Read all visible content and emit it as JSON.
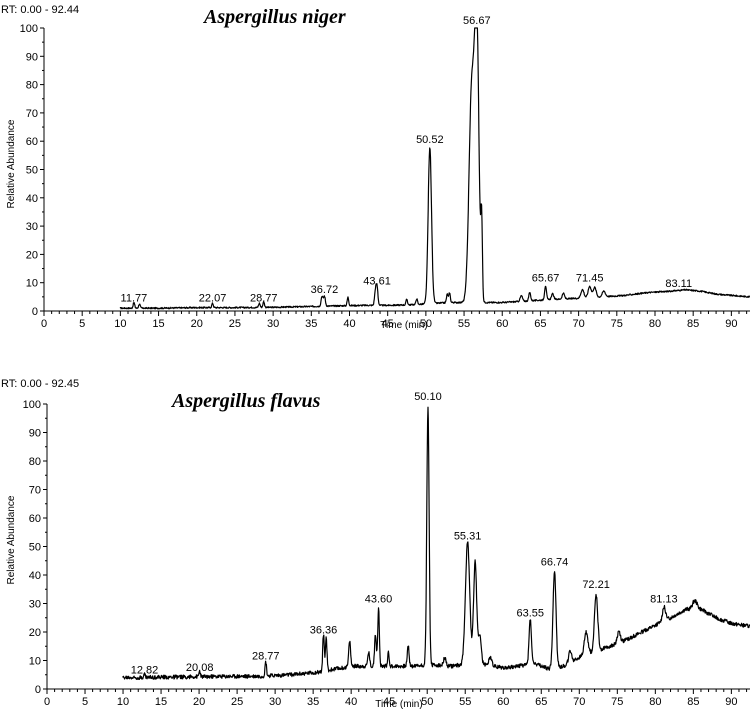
{
  "chart_data": [
    {
      "type": "line",
      "rt_label": "RT: 0.00 - 92.44",
      "title": "Aspergillus niger",
      "xlabel": "Time (min)",
      "ylabel": "Relative Abundance",
      "xlim": [
        0,
        92.44
      ],
      "ylim": [
        0,
        100
      ],
      "x_ticks": [
        0,
        5,
        10,
        15,
        20,
        25,
        30,
        35,
        40,
        45,
        50,
        55,
        60,
        65,
        70,
        75,
        80,
        85,
        90
      ],
      "y_ticks": [
        0,
        10,
        20,
        30,
        40,
        50,
        60,
        70,
        80,
        90,
        100
      ],
      "peak_labels": [
        {
          "x": 11.77,
          "y": 2,
          "text": "11.77"
        },
        {
          "x": 22.07,
          "y": 2,
          "text": "22.07"
        },
        {
          "x": 28.77,
          "y": 2,
          "text": "28.77"
        },
        {
          "x": 36.72,
          "y": 5,
          "text": "36.72"
        },
        {
          "x": 43.61,
          "y": 8,
          "text": "43.61"
        },
        {
          "x": 50.52,
          "y": 58,
          "text": "50.52"
        },
        {
          "x": 56.67,
          "y": 100,
          "text": "56.67"
        },
        {
          "x": 65.67,
          "y": 9,
          "text": "65.67"
        },
        {
          "x": 71.45,
          "y": 9,
          "text": "71.45"
        },
        {
          "x": 83.11,
          "y": 7,
          "text": "83.11"
        }
      ],
      "series": [
        {
          "baseline": [
            [
              10,
              1
            ],
            [
              15,
              1
            ],
            [
              20,
              1.2
            ],
            [
              25,
              1.2
            ],
            [
              30,
              1.3
            ],
            [
              35,
              1.6
            ],
            [
              38,
              1.8
            ],
            [
              42,
              2
            ],
            [
              45,
              2
            ],
            [
              48,
              2.2
            ],
            [
              50,
              2.5
            ],
            [
              53,
              3
            ],
            [
              57,
              3
            ],
            [
              60,
              3
            ],
            [
              63,
              3.5
            ],
            [
              66,
              4
            ],
            [
              70,
              4.5
            ],
            [
              73,
              5
            ],
            [
              76,
              5.5
            ],
            [
              79,
              6.5
            ],
            [
              82,
              7
            ],
            [
              84,
              7.5
            ],
            [
              86,
              7
            ],
            [
              88,
              6
            ],
            [
              90,
              5.5
            ],
            [
              92.44,
              5
            ]
          ],
          "peaks": [
            [
              11.77,
              2,
              0.1
            ],
            [
              12.5,
              1.5,
              0.1
            ],
            [
              22.07,
              1.5,
              0.1
            ],
            [
              28.2,
              1.5,
              0.1
            ],
            [
              28.77,
              2,
              0.1
            ],
            [
              36.4,
              3.5,
              0.12
            ],
            [
              36.72,
              3.5,
              0.12
            ],
            [
              39.8,
              3,
              0.1
            ],
            [
              43.4,
              5,
              0.12
            ],
            [
              43.61,
              6,
              0.12
            ],
            [
              47.5,
              2,
              0.1
            ],
            [
              48.8,
              2,
              0.1
            ],
            [
              50.52,
              55,
              0.22
            ],
            [
              52.8,
              3,
              0.1
            ],
            [
              53.1,
              3.5,
              0.1
            ],
            [
              56.0,
              75,
              0.35
            ],
            [
              56.67,
              95,
              0.28
            ],
            [
              57.3,
              27,
              0.1
            ],
            [
              62.5,
              2,
              0.15
            ],
            [
              63.6,
              3,
              0.12
            ],
            [
              65.67,
              5,
              0.12
            ],
            [
              66.6,
              2,
              0.15
            ],
            [
              68,
              2,
              0.15
            ],
            [
              70.5,
              3,
              0.2
            ],
            [
              71.45,
              4,
              0.2
            ],
            [
              72.1,
              3.5,
              0.2
            ],
            [
              73.3,
              2,
              0.2
            ]
          ],
          "noise": 0.25
        }
      ]
    },
    {
      "type": "line",
      "rt_label": "RT: 0.00 - 92.45",
      "title": "Aspergillus flavus",
      "xlabel": "Time (min)",
      "ylabel": "Relative Abundance",
      "xlim": [
        0,
        92.45
      ],
      "ylim": [
        0,
        100
      ],
      "x_ticks": [
        0,
        5,
        10,
        15,
        20,
        25,
        30,
        35,
        40,
        45,
        50,
        55,
        60,
        65,
        70,
        75,
        80,
        85,
        90
      ],
      "y_ticks": [
        0,
        10,
        20,
        30,
        40,
        50,
        60,
        70,
        80,
        90,
        100
      ],
      "peak_labels": [
        {
          "x": 12.82,
          "y": 4,
          "text": "12.82"
        },
        {
          "x": 20.08,
          "y": 5,
          "text": "20.08"
        },
        {
          "x": 28.77,
          "y": 9,
          "text": "28.77"
        },
        {
          "x": 36.36,
          "y": 18,
          "text": "36.36"
        },
        {
          "x": 43.6,
          "y": 29,
          "text": "43.60"
        },
        {
          "x": 50.1,
          "y": 100,
          "text": "50.10"
        },
        {
          "x": 55.31,
          "y": 51,
          "text": "55.31"
        },
        {
          "x": 63.55,
          "y": 24,
          "text": "63.55"
        },
        {
          "x": 66.74,
          "y": 42,
          "text": "66.74"
        },
        {
          "x": 72.21,
          "y": 34,
          "text": "72.21"
        },
        {
          "x": 81.13,
          "y": 29,
          "text": "81.13"
        }
      ],
      "series": [
        {
          "baseline": [
            [
              10,
              4
            ],
            [
              20,
              4.3
            ],
            [
              28,
              4.5
            ],
            [
              32,
              5
            ],
            [
              36,
              6
            ],
            [
              40,
              8
            ],
            [
              44,
              8
            ],
            [
              48,
              8
            ],
            [
              50,
              8.5
            ],
            [
              53,
              8
            ],
            [
              56,
              9
            ],
            [
              60,
              7.5
            ],
            [
              62,
              8
            ],
            [
              64,
              9
            ],
            [
              66,
              7
            ],
            [
              68,
              8
            ],
            [
              70,
              11
            ],
            [
              73,
              14
            ],
            [
              76,
              17
            ],
            [
              79,
              21
            ],
            [
              82,
              25
            ],
            [
              84,
              28
            ],
            [
              86,
              28
            ],
            [
              88,
              25
            ],
            [
              90,
              23
            ],
            [
              92.45,
              22
            ]
          ],
          "peaks": [
            [
              12.82,
              1,
              0.1
            ],
            [
              20.08,
              2,
              0.1
            ],
            [
              28.77,
              5,
              0.1
            ],
            [
              36.36,
              13,
              0.1
            ],
            [
              36.72,
              12,
              0.1
            ],
            [
              39.8,
              9,
              0.12
            ],
            [
              42.3,
              5,
              0.12
            ],
            [
              43.2,
              11,
              0.12
            ],
            [
              43.6,
              21,
              0.1
            ],
            [
              44.9,
              5,
              0.1
            ],
            [
              47.5,
              7,
              0.12
            ],
            [
              50.1,
              91,
              0.15
            ],
            [
              52.3,
              3,
              0.15
            ],
            [
              55.31,
              43,
              0.28
            ],
            [
              56.3,
              36,
              0.2
            ],
            [
              56.9,
              10,
              0.2
            ],
            [
              58.3,
              3,
              0.2
            ],
            [
              63.55,
              16,
              0.15
            ],
            [
              66.74,
              34,
              0.2
            ],
            [
              68.8,
              4,
              0.2
            ],
            [
              70.9,
              8,
              0.25
            ],
            [
              72.21,
              20,
              0.22
            ],
            [
              75.2,
              4,
              0.2
            ],
            [
              81.13,
              5,
              0.2
            ],
            [
              85.2,
              3,
              0.3
            ]
          ],
          "noise": 0.7
        }
      ]
    }
  ]
}
